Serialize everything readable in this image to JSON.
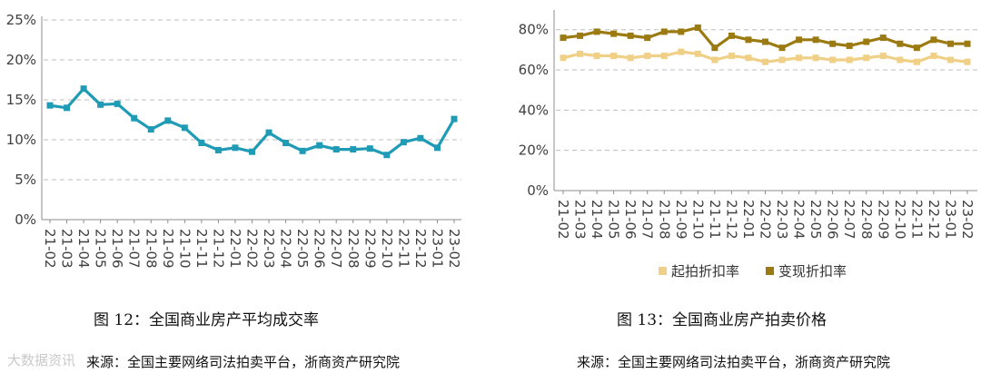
{
  "charts": [
    {
      "type": "line",
      "x": [
        "21-02",
        "21-03",
        "21-04",
        "21-05",
        "21-06",
        "21-07",
        "21-08",
        "21-09",
        "21-10",
        "21-11",
        "21-12",
        "22-01",
        "22-02",
        "22-03",
        "22-04",
        "22-05",
        "22-06",
        "22-07",
        "22-08",
        "22-09",
        "22-10",
        "22-11",
        "22-12",
        "23-01",
        "23-02"
      ],
      "series": [
        {
          "name": "",
          "color": "#1f9bb5",
          "values": [
            14.3,
            14.0,
            16.4,
            14.4,
            14.5,
            12.7,
            11.3,
            12.4,
            11.5,
            9.6,
            8.7,
            9.0,
            8.5,
            10.9,
            9.6,
            8.6,
            9.3,
            8.8,
            8.8,
            8.9,
            8.1,
            9.7,
            10.2,
            9.0,
            12.6
          ]
        }
      ],
      "yticks": [
        0,
        5,
        10,
        15,
        20,
        25
      ],
      "ytick_labels": [
        "0%",
        "5%",
        "10%",
        "15%",
        "20%",
        "25%"
      ],
      "ylim": [
        0,
        25
      ],
      "grid": true,
      "legend": "none"
    },
    {
      "type": "line",
      "x": [
        "21-02",
        "21-03",
        "21-04",
        "21-05",
        "21-06",
        "21-07",
        "21-08",
        "21-09",
        "21-10",
        "21-11",
        "21-12",
        "22-01",
        "22-02",
        "22-03",
        "22-04",
        "22-05",
        "22-06",
        "22-07",
        "22-08",
        "22-09",
        "22-10",
        "22-11",
        "22-12",
        "23-01",
        "23-02"
      ],
      "series": [
        {
          "name": "起拍折扣率",
          "color": "#f0cf86",
          "values": [
            66,
            68,
            67,
            67,
            66,
            67,
            67,
            69,
            68,
            65,
            67,
            66,
            64,
            65,
            66,
            66,
            65,
            65,
            66,
            67,
            65,
            64,
            67,
            65,
            64
          ]
        },
        {
          "name": "变现折扣率",
          "color": "#9c7a12",
          "values": [
            76,
            77,
            79,
            78,
            77,
            76,
            79,
            79,
            81,
            71,
            77,
            75,
            74,
            71,
            75,
            75,
            73,
            72,
            74,
            76,
            73,
            71,
            75,
            73,
            73
          ]
        }
      ],
      "yticks": [
        0,
        20,
        40,
        60,
        80
      ],
      "ytick_labels": [
        "0%",
        "20%",
        "40%",
        "60%",
        "80%"
      ],
      "ylim": [
        0,
        88
      ],
      "grid": true,
      "legend": "bottom"
    }
  ],
  "captions": {
    "fig12_title": "图 12：全国商业房产平均成交率",
    "fig12_source": "来源：全国主要网络司法拍卖平台，浙商资产研究院",
    "fig13_title": "图 13：全国商业房产拍卖价格",
    "fig13_source": "来源：全国主要网络司法拍卖平台，浙商资产研究院"
  },
  "watermark": "大数据资讯"
}
